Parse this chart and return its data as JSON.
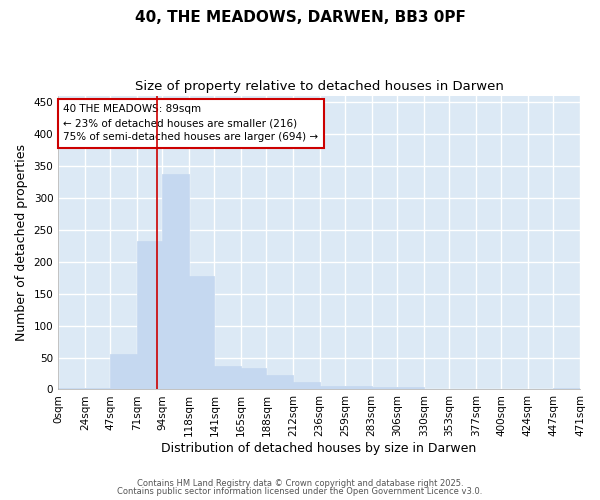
{
  "title": "40, THE MEADOWS, DARWEN, BB3 0PF",
  "subtitle": "Size of property relative to detached houses in Darwen",
  "xlabel": "Distribution of detached houses by size in Darwen",
  "ylabel": "Number of detached properties",
  "bin_edges": [
    0,
    24,
    47,
    71,
    94,
    118,
    141,
    165,
    188,
    212,
    236,
    259,
    283,
    306,
    330,
    353,
    377,
    400,
    424,
    447,
    471
  ],
  "bin_labels": [
    "0sqm",
    "24sqm",
    "47sqm",
    "71sqm",
    "94sqm",
    "118sqm",
    "141sqm",
    "165sqm",
    "188sqm",
    "212sqm",
    "236sqm",
    "259sqm",
    "283sqm",
    "306sqm",
    "330sqm",
    "353sqm",
    "377sqm",
    "400sqm",
    "424sqm",
    "447sqm",
    "471sqm"
  ],
  "counts": [
    3,
    3,
    55,
    233,
    338,
    177,
    37,
    34,
    22,
    12,
    5,
    6,
    4,
    4,
    0,
    0,
    0,
    0,
    0,
    3
  ],
  "bar_color": "#c5d8f0",
  "bar_edge_color": "#c5d8f0",
  "red_line_x": 89,
  "annotation_title": "40 THE MEADOWS: 89sqm",
  "annotation_line1": "← 23% of detached houses are smaller (216)",
  "annotation_line2": "75% of semi-detached houses are larger (694) →",
  "annotation_box_color": "#ffffff",
  "annotation_box_edge_color": "#cc0000",
  "red_line_color": "#cc0000",
  "ylim": [
    0,
    460
  ],
  "yticks": [
    0,
    50,
    100,
    150,
    200,
    250,
    300,
    350,
    400,
    450
  ],
  "plot_bg_color": "#dce9f5",
  "fig_bg_color": "#ffffff",
  "grid_color": "#ffffff",
  "title_fontsize": 11,
  "subtitle_fontsize": 9.5,
  "label_fontsize": 9,
  "tick_fontsize": 7.5,
  "annot_fontsize": 7.5,
  "footer_line1": "Contains HM Land Registry data © Crown copyright and database right 2025.",
  "footer_line2": "Contains public sector information licensed under the Open Government Licence v3.0."
}
